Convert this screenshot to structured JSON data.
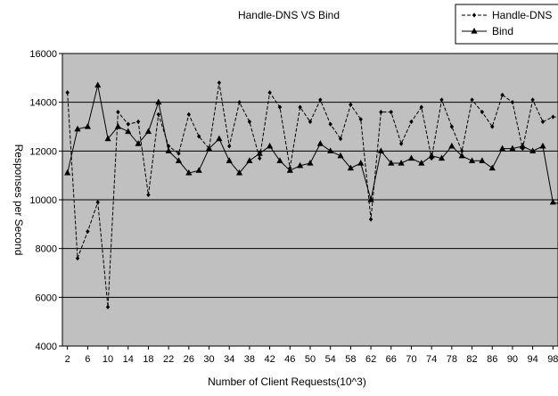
{
  "chart_data": {
    "type": "line",
    "title": "Handle-DNS VS Bind",
    "xlabel": "Number of Client Requests(10^3)",
    "ylabel": "Responses per Second",
    "ylim": [
      4000,
      16000
    ],
    "yticks": [
      4000,
      6000,
      8000,
      10000,
      12000,
      14000,
      16000
    ],
    "ytick_labels": [
      "4000",
      "6000",
      "8000",
      "10000",
      "12000",
      "14000",
      "16000"
    ],
    "xlim": [
      1,
      99
    ],
    "xticks": [
      2,
      6,
      10,
      14,
      18,
      22,
      26,
      30,
      34,
      38,
      42,
      46,
      50,
      54,
      58,
      62,
      66,
      70,
      74,
      78,
      82,
      86,
      90,
      94,
      98
    ],
    "xtick_labels": [
      "2",
      "6",
      "10",
      "14",
      "18",
      "22",
      "26",
      "30",
      "34",
      "38",
      "42",
      "46",
      "50",
      "54",
      "58",
      "62",
      "66",
      "70",
      "74",
      "78",
      "82",
      "86",
      "90",
      "94",
      "98"
    ],
    "grid": "horizontal",
    "background": "#c0c0c0",
    "legend_position": "top-right",
    "x": [
      2,
      4,
      6,
      8,
      10,
      12,
      14,
      16,
      18,
      20,
      22,
      24,
      26,
      28,
      30,
      32,
      34,
      36,
      38,
      40,
      42,
      44,
      46,
      48,
      50,
      52,
      54,
      56,
      58,
      60,
      62,
      64,
      66,
      68,
      70,
      72,
      74,
      76,
      78,
      80,
      82,
      84,
      86,
      88,
      90,
      92,
      94,
      96,
      98,
      100
    ],
    "series": [
      {
        "name": "Handle-DNS",
        "style": "dashed",
        "marker": "diamond",
        "values": [
          14400,
          7600,
          8700,
          9900,
          5600,
          13600,
          13100,
          13200,
          10200,
          13500,
          12200,
          11900,
          13500,
          12600,
          12100,
          14800,
          12200,
          14000,
          13200,
          11700,
          14400,
          13800,
          11300,
          13800,
          13200,
          14100,
          13100,
          12500,
          13900,
          13300,
          9200,
          13600,
          13600,
          12300,
          13200,
          13800,
          11700,
          14100,
          13000,
          12000,
          14100,
          13600,
          13000,
          14300,
          14000,
          12100,
          14100,
          13200,
          13400,
          13400
        ]
      },
      {
        "name": "Bind",
        "style": "solid",
        "marker": "triangle",
        "values": [
          11100,
          12900,
          13000,
          14700,
          12500,
          13000,
          12800,
          12300,
          12800,
          14000,
          12000,
          11600,
          11100,
          11200,
          12100,
          12500,
          11600,
          11100,
          11600,
          11900,
          12200,
          11600,
          11200,
          11400,
          11500,
          12300,
          12000,
          11800,
          11300,
          11500,
          10000,
          12000,
          11500,
          11500,
          11700,
          11500,
          11800,
          11700,
          12200,
          11800,
          11600,
          11600,
          11300,
          12100,
          12100,
          12200,
          12000,
          12200,
          9900,
          9800
        ]
      }
    ]
  }
}
